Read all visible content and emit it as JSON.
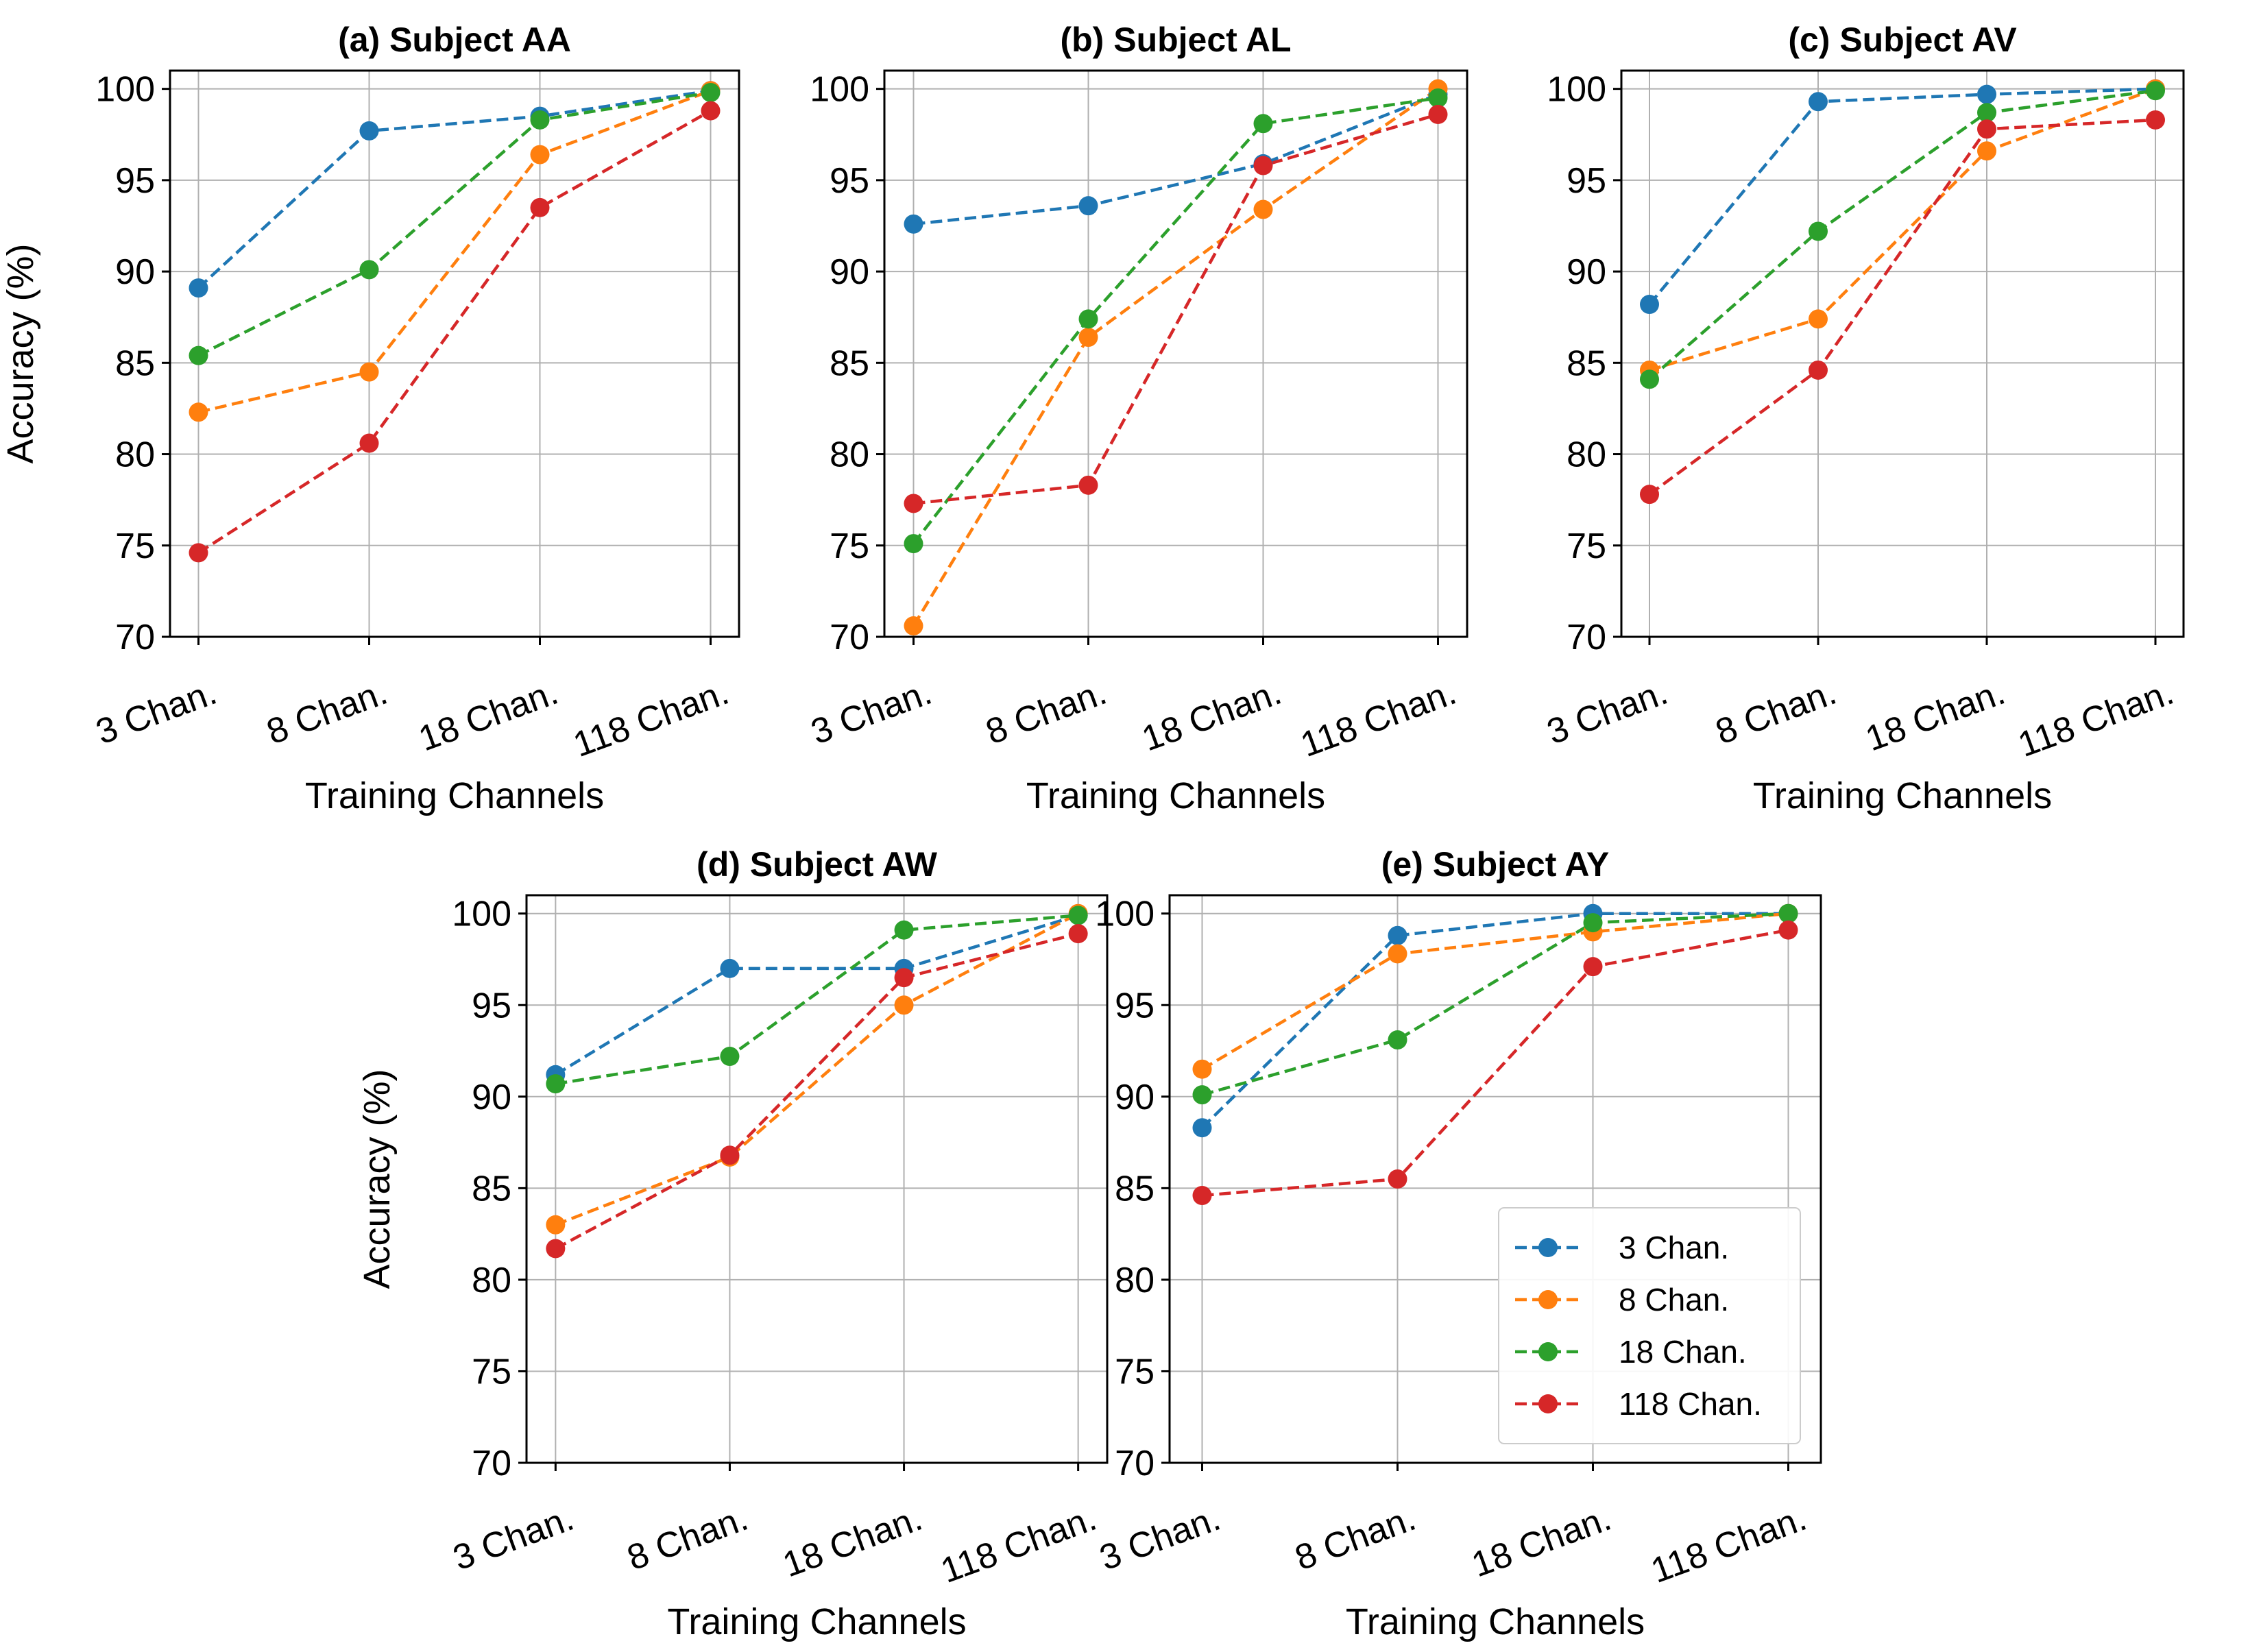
{
  "chart_data": [
    {
      "type": "line",
      "title": "(a) Subject AA",
      "xlabel": "Training Channels",
      "ylabel": "Accuracy (%)",
      "categories": [
        "3 Chan.",
        "8 Chan.",
        "18 Chan.",
        "118 Chan."
      ],
      "ylim": [
        70,
        101
      ],
      "yticks": [
        70,
        75,
        80,
        85,
        90,
        95,
        100
      ],
      "grid": true,
      "series": [
        {
          "name": "3 Chan.",
          "values": [
            89.1,
            97.7,
            98.5,
            99.9
          ]
        },
        {
          "name": "8 Chan.",
          "values": [
            82.3,
            84.5,
            96.4,
            99.9
          ]
        },
        {
          "name": "18 Chan.",
          "values": [
            85.4,
            90.1,
            98.3,
            99.8
          ]
        },
        {
          "name": "118 Chan.",
          "values": [
            74.6,
            80.6,
            93.5,
            98.8
          ]
        }
      ]
    },
    {
      "type": "line",
      "title": "(b) Subject AL",
      "xlabel": "Training Channels",
      "ylabel": "",
      "categories": [
        "3 Chan.",
        "8 Chan.",
        "18 Chan.",
        "118 Chan."
      ],
      "ylim": [
        70,
        101
      ],
      "yticks": [
        70,
        75,
        80,
        85,
        90,
        95,
        100
      ],
      "grid": true,
      "series": [
        {
          "name": "3 Chan.",
          "values": [
            92.6,
            93.6,
            95.9,
            99.7
          ]
        },
        {
          "name": "8 Chan.",
          "values": [
            70.6,
            86.4,
            93.4,
            100.0
          ]
        },
        {
          "name": "18 Chan.",
          "values": [
            75.1,
            87.4,
            98.1,
            99.5
          ]
        },
        {
          "name": "118 Chan.",
          "values": [
            77.3,
            78.3,
            95.8,
            98.6
          ]
        }
      ]
    },
    {
      "type": "line",
      "title": "(c) Subject AV",
      "xlabel": "Training Channels",
      "ylabel": "",
      "categories": [
        "3 Chan.",
        "8 Chan.",
        "18 Chan.",
        "118 Chan."
      ],
      "ylim": [
        70,
        101
      ],
      "yticks": [
        70,
        75,
        80,
        85,
        90,
        95,
        100
      ],
      "grid": true,
      "series": [
        {
          "name": "3 Chan.",
          "values": [
            88.2,
            99.3,
            99.7,
            100.0
          ]
        },
        {
          "name": "8 Chan.",
          "values": [
            84.6,
            87.4,
            96.6,
            100.0
          ]
        },
        {
          "name": "18 Chan.",
          "values": [
            84.1,
            92.2,
            98.7,
            99.9
          ]
        },
        {
          "name": "118 Chan.",
          "values": [
            77.8,
            84.6,
            97.8,
            98.3
          ]
        }
      ]
    },
    {
      "type": "line",
      "title": "(d) Subject AW",
      "xlabel": "Training Channels",
      "ylabel": "Accuracy (%)",
      "categories": [
        "3 Chan.",
        "8 Chan.",
        "18 Chan.",
        "118 Chan."
      ],
      "ylim": [
        70,
        101
      ],
      "yticks": [
        70,
        75,
        80,
        85,
        90,
        95,
        100
      ],
      "grid": true,
      "series": [
        {
          "name": "3 Chan.",
          "values": [
            91.2,
            97.0,
            97.0,
            99.9
          ]
        },
        {
          "name": "8 Chan.",
          "values": [
            83.0,
            86.7,
            95.0,
            100.0
          ]
        },
        {
          "name": "18 Chan.",
          "values": [
            90.7,
            92.2,
            99.1,
            99.9
          ]
        },
        {
          "name": "118 Chan.",
          "values": [
            81.7,
            86.8,
            96.5,
            98.9
          ]
        }
      ]
    },
    {
      "type": "line",
      "title": "(e) Subject AY",
      "xlabel": "Training Channels",
      "ylabel": "",
      "categories": [
        "3 Chan.",
        "8 Chan.",
        "18 Chan.",
        "118 Chan."
      ],
      "ylim": [
        70,
        101
      ],
      "yticks": [
        70,
        75,
        80,
        85,
        90,
        95,
        100
      ],
      "grid": true,
      "legend": {
        "location": "lower-right",
        "entries": [
          "3 Chan.",
          "8 Chan.",
          "18 Chan.",
          "118 Chan."
        ]
      },
      "series": [
        {
          "name": "3 Chan.",
          "values": [
            88.3,
            98.8,
            100.0,
            100.0
          ]
        },
        {
          "name": "8 Chan.",
          "values": [
            91.5,
            97.8,
            99.0,
            100.0
          ]
        },
        {
          "name": "18 Chan.",
          "values": [
            90.1,
            93.1,
            99.5,
            100.0
          ]
        },
        {
          "name": "118 Chan.",
          "values": [
            84.6,
            85.5,
            97.1,
            99.1
          ]
        }
      ]
    }
  ],
  "colors": {
    "3 Chan.": "#1f77b4",
    "8 Chan.": "#ff7f0e",
    "18 Chan.": "#2ca02c",
    "118 Chan.": "#d62728"
  }
}
